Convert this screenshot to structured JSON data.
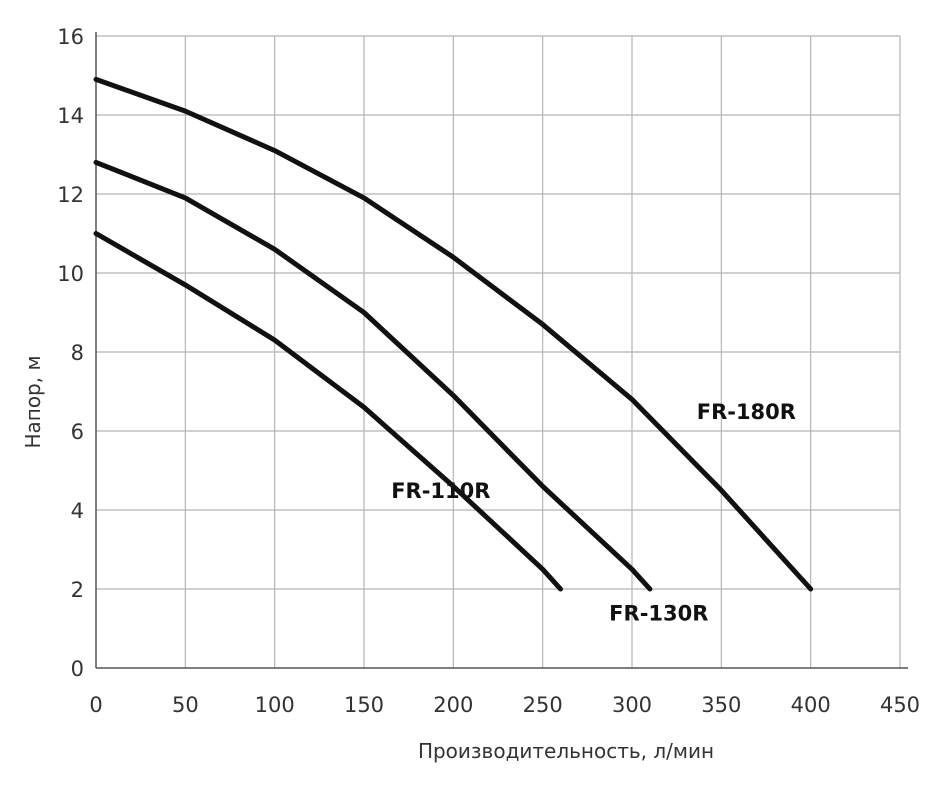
{
  "chart_data": {
    "type": "line",
    "title": "",
    "xlabel": "Производительность, л/мин",
    "ylabel": "Напор, м",
    "xlim": [
      0,
      450
    ],
    "ylim": [
      0,
      16
    ],
    "x_ticks": [
      0,
      50,
      100,
      150,
      200,
      250,
      300,
      350,
      400,
      450
    ],
    "y_ticks": [
      0,
      2,
      4,
      6,
      8,
      10,
      12,
      14,
      16
    ],
    "grid": true,
    "series": [
      {
        "name": "FR-110R",
        "x": [
          0,
          50,
          100,
          150,
          200,
          250,
          260
        ],
        "y": [
          11.0,
          9.7,
          8.3,
          6.6,
          4.6,
          2.5,
          2.0
        ]
      },
      {
        "name": "FR-130R",
        "x": [
          0,
          50,
          100,
          150,
          200,
          250,
          300,
          310
        ],
        "y": [
          12.8,
          11.9,
          10.6,
          9.0,
          6.9,
          4.6,
          2.5,
          2.0
        ]
      },
      {
        "name": "FR-180R",
        "x": [
          0,
          50,
          100,
          150,
          200,
          250,
          300,
          350,
          400
        ],
        "y": [
          14.9,
          14.1,
          13.1,
          11.9,
          10.4,
          8.7,
          6.8,
          4.5,
          2.0
        ]
      }
    ],
    "annotations": [
      {
        "text": "FR-110R",
        "x": 193,
        "y": 4.3
      },
      {
        "text": "FR-130R",
        "x": 315,
        "y": 1.2
      },
      {
        "text": "FR-180R",
        "x": 364,
        "y": 6.3
      }
    ]
  }
}
